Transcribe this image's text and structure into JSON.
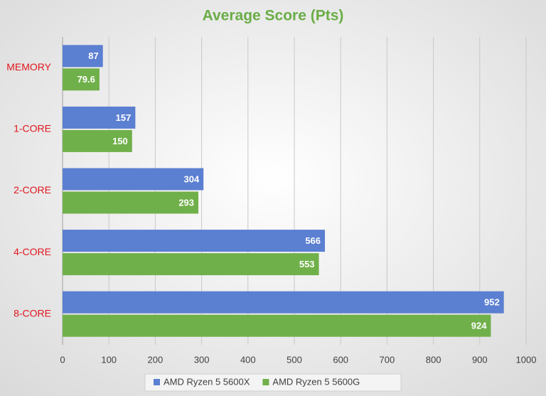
{
  "chart_data": {
    "type": "hbar",
    "title": "Average Score (Pts)",
    "categories": [
      "MEMORY",
      "1-CORE",
      "2-CORE",
      "4-CORE",
      "8-CORE"
    ],
    "series": [
      {
        "name": "AMD Ryzen 5 5600X",
        "color": "#5b7fd1",
        "values": [
          87,
          157,
          304,
          566,
          952
        ]
      },
      {
        "name": "AMD Ryzen 5 5600G",
        "color": "#70b04a",
        "values": [
          79.6,
          150,
          293,
          553,
          924
        ]
      }
    ],
    "xlim": [
      0,
      1000
    ],
    "xticks": [
      0,
      100,
      200,
      300,
      400,
      500,
      600,
      700,
      800,
      900,
      1000
    ],
    "grid": true,
    "legend": "bottom",
    "category_color": "#e0161e"
  }
}
